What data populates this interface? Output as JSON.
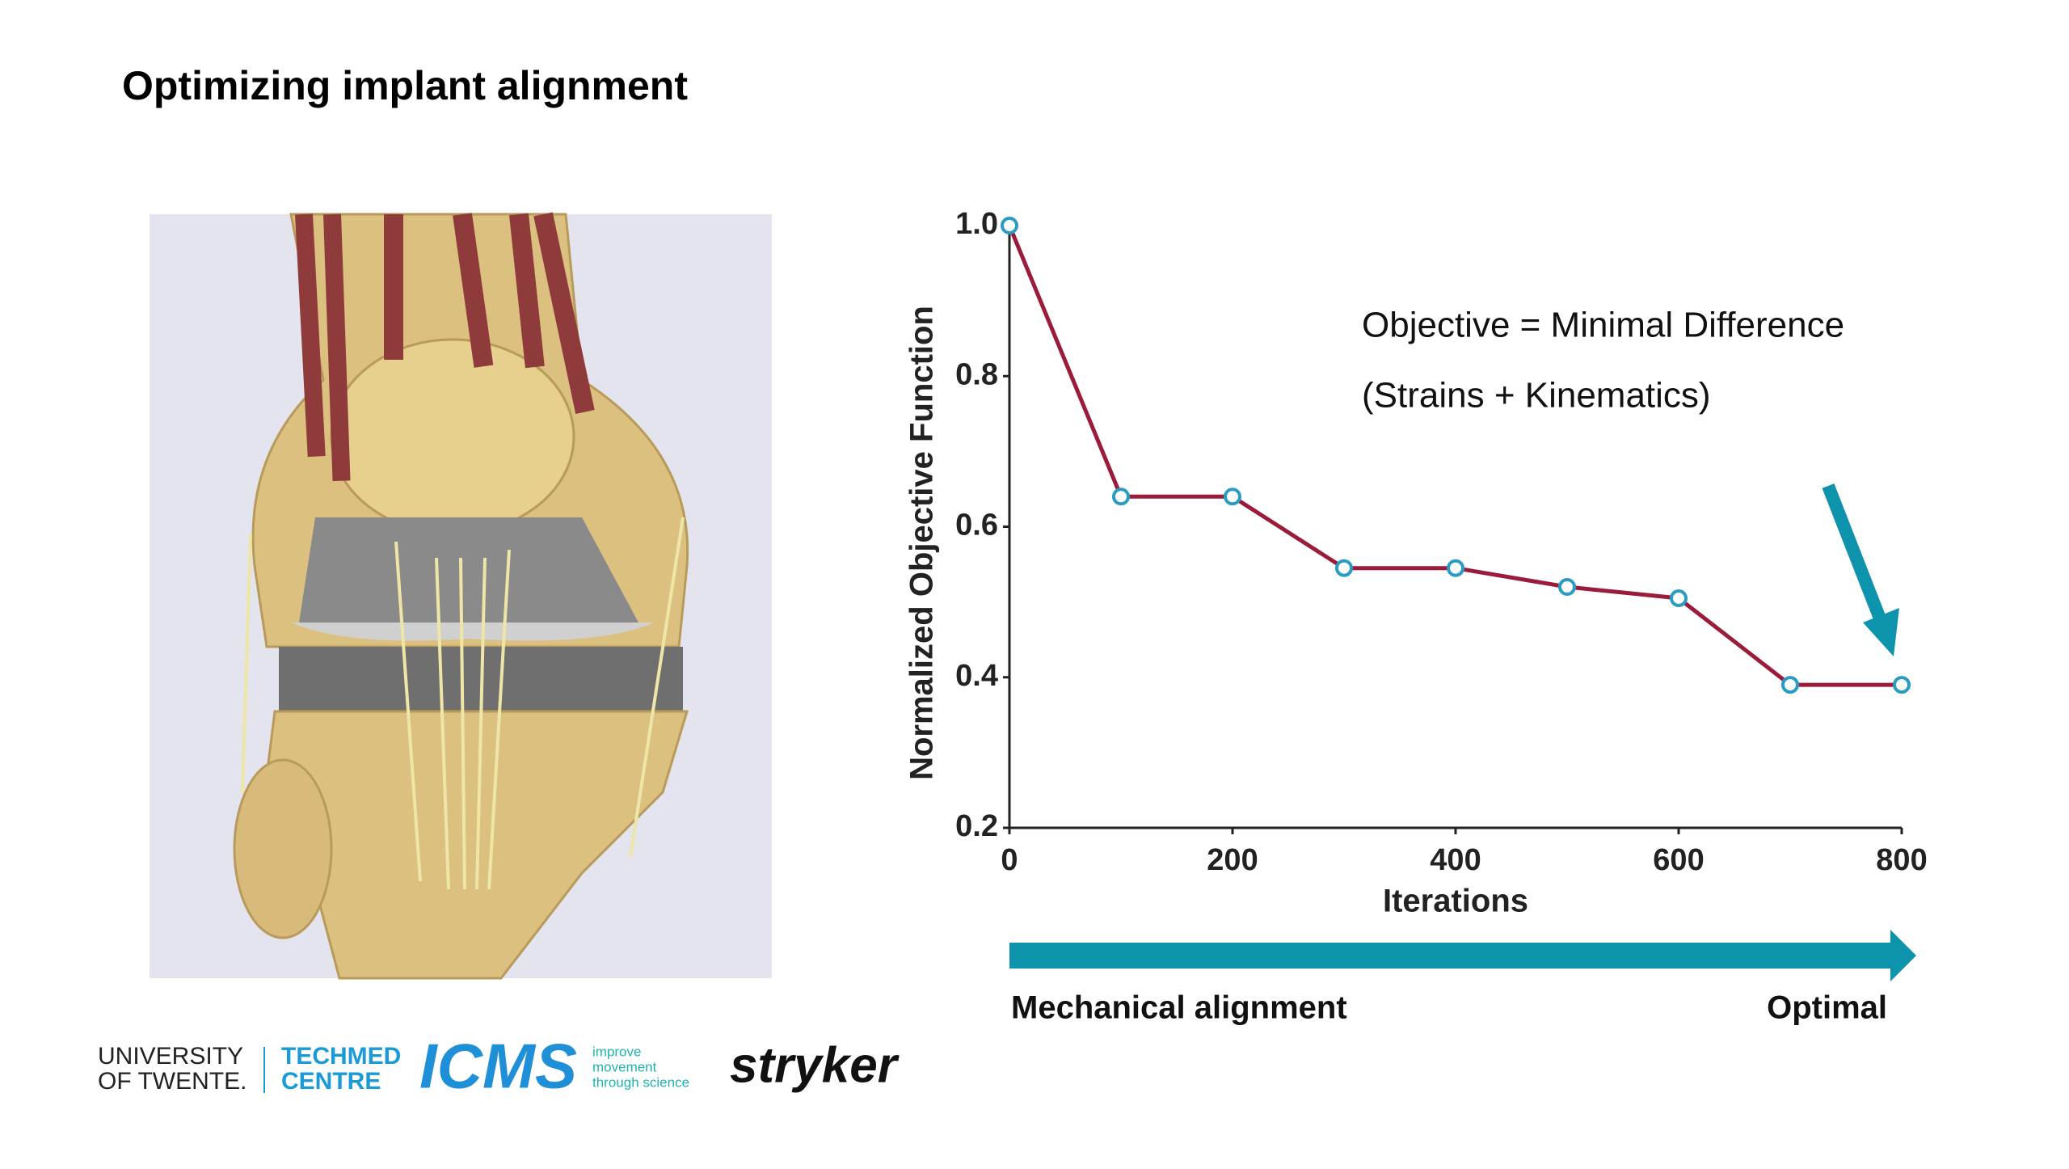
{
  "slide": {
    "title": "Optimizing implant alignment"
  },
  "chart_data": {
    "type": "line",
    "x_label": "Iterations",
    "y_label": "Normalized Objective Function",
    "x": [
      0,
      100,
      200,
      300,
      400,
      500,
      600,
      700,
      800
    ],
    "values": [
      1.0,
      0.64,
      0.64,
      0.545,
      0.545,
      0.52,
      0.505,
      0.39,
      0.39
    ],
    "color": "#9b1b3a",
    "marker_color": "#2a9cc4",
    "xlim": [
      0,
      800
    ],
    "ylim": [
      0.2,
      1.0
    ],
    "xticks": [
      0,
      200,
      400,
      600,
      800
    ],
    "yticks": [
      0.2,
      0.4,
      0.6,
      0.8,
      {
        "value": 1.0,
        "label": "1.0"
      }
    ],
    "grid": false,
    "annotations": [
      "Objective = Minimal Difference",
      "(Strains + Kinematics)"
    ],
    "arrow_labels": [
      "Mechanical alignment",
      "Optimal"
    ]
  },
  "logos": {
    "university": [
      "UNIVERSITY",
      "OF TWENTE."
    ],
    "techmed": [
      "TECHMED",
      "CENTRE"
    ],
    "icms": "ICMS",
    "icms_tagline": [
      "improve",
      "movement",
      "through science"
    ],
    "stryker": "stryker"
  }
}
